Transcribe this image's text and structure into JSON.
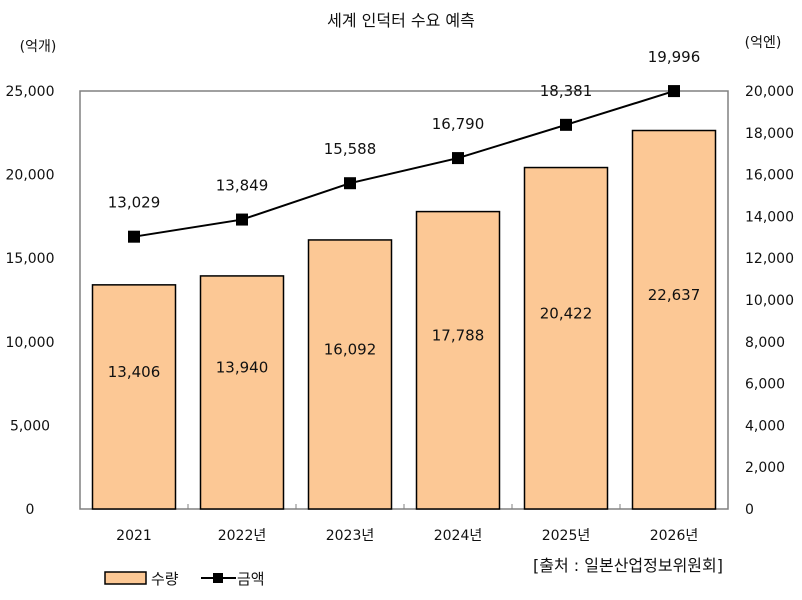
{
  "chart_data": {
    "type": "bar+line",
    "title": "세계 인덕터 수요 예측",
    "categories": [
      "2021",
      "2022년",
      "2023년",
      "2024년",
      "2025년",
      "2026년"
    ],
    "left_axis": {
      "unit_label": "(억개)",
      "ylim": [
        0,
        25000
      ],
      "ticks": [
        "0",
        "5,000",
        "10,000",
        "15,000",
        "20,000",
        "25,000"
      ]
    },
    "right_axis": {
      "unit_label": "(억엔)",
      "ylim": [
        0,
        20000
      ],
      "ticks": [
        "0",
        "2,000",
        "4,000",
        "6,000",
        "8,000",
        "10,000",
        "12,000",
        "14,000",
        "16,000",
        "18,000",
        "20,000"
      ]
    },
    "series": [
      {
        "name": "수량",
        "type": "bar",
        "axis": "left",
        "color": "#FCC895",
        "values": [
          13406,
          13940,
          16092,
          17788,
          20422,
          22637
        ],
        "labels": [
          "13,406",
          "13,940",
          "16,092",
          "17,788",
          "20,422",
          "22,637"
        ]
      },
      {
        "name": "금액",
        "type": "line",
        "axis": "right",
        "color": "#000000",
        "marker": "square",
        "values": [
          13029,
          13849,
          15588,
          16790,
          18381,
          19996
        ],
        "labels": [
          "13,029",
          "13,849",
          "15,588",
          "16,790",
          "18,381",
          "19,996"
        ]
      }
    ],
    "legend_position": "bottom-left",
    "grid": false,
    "source": "[출처 : 일본산업정보위원회]"
  }
}
